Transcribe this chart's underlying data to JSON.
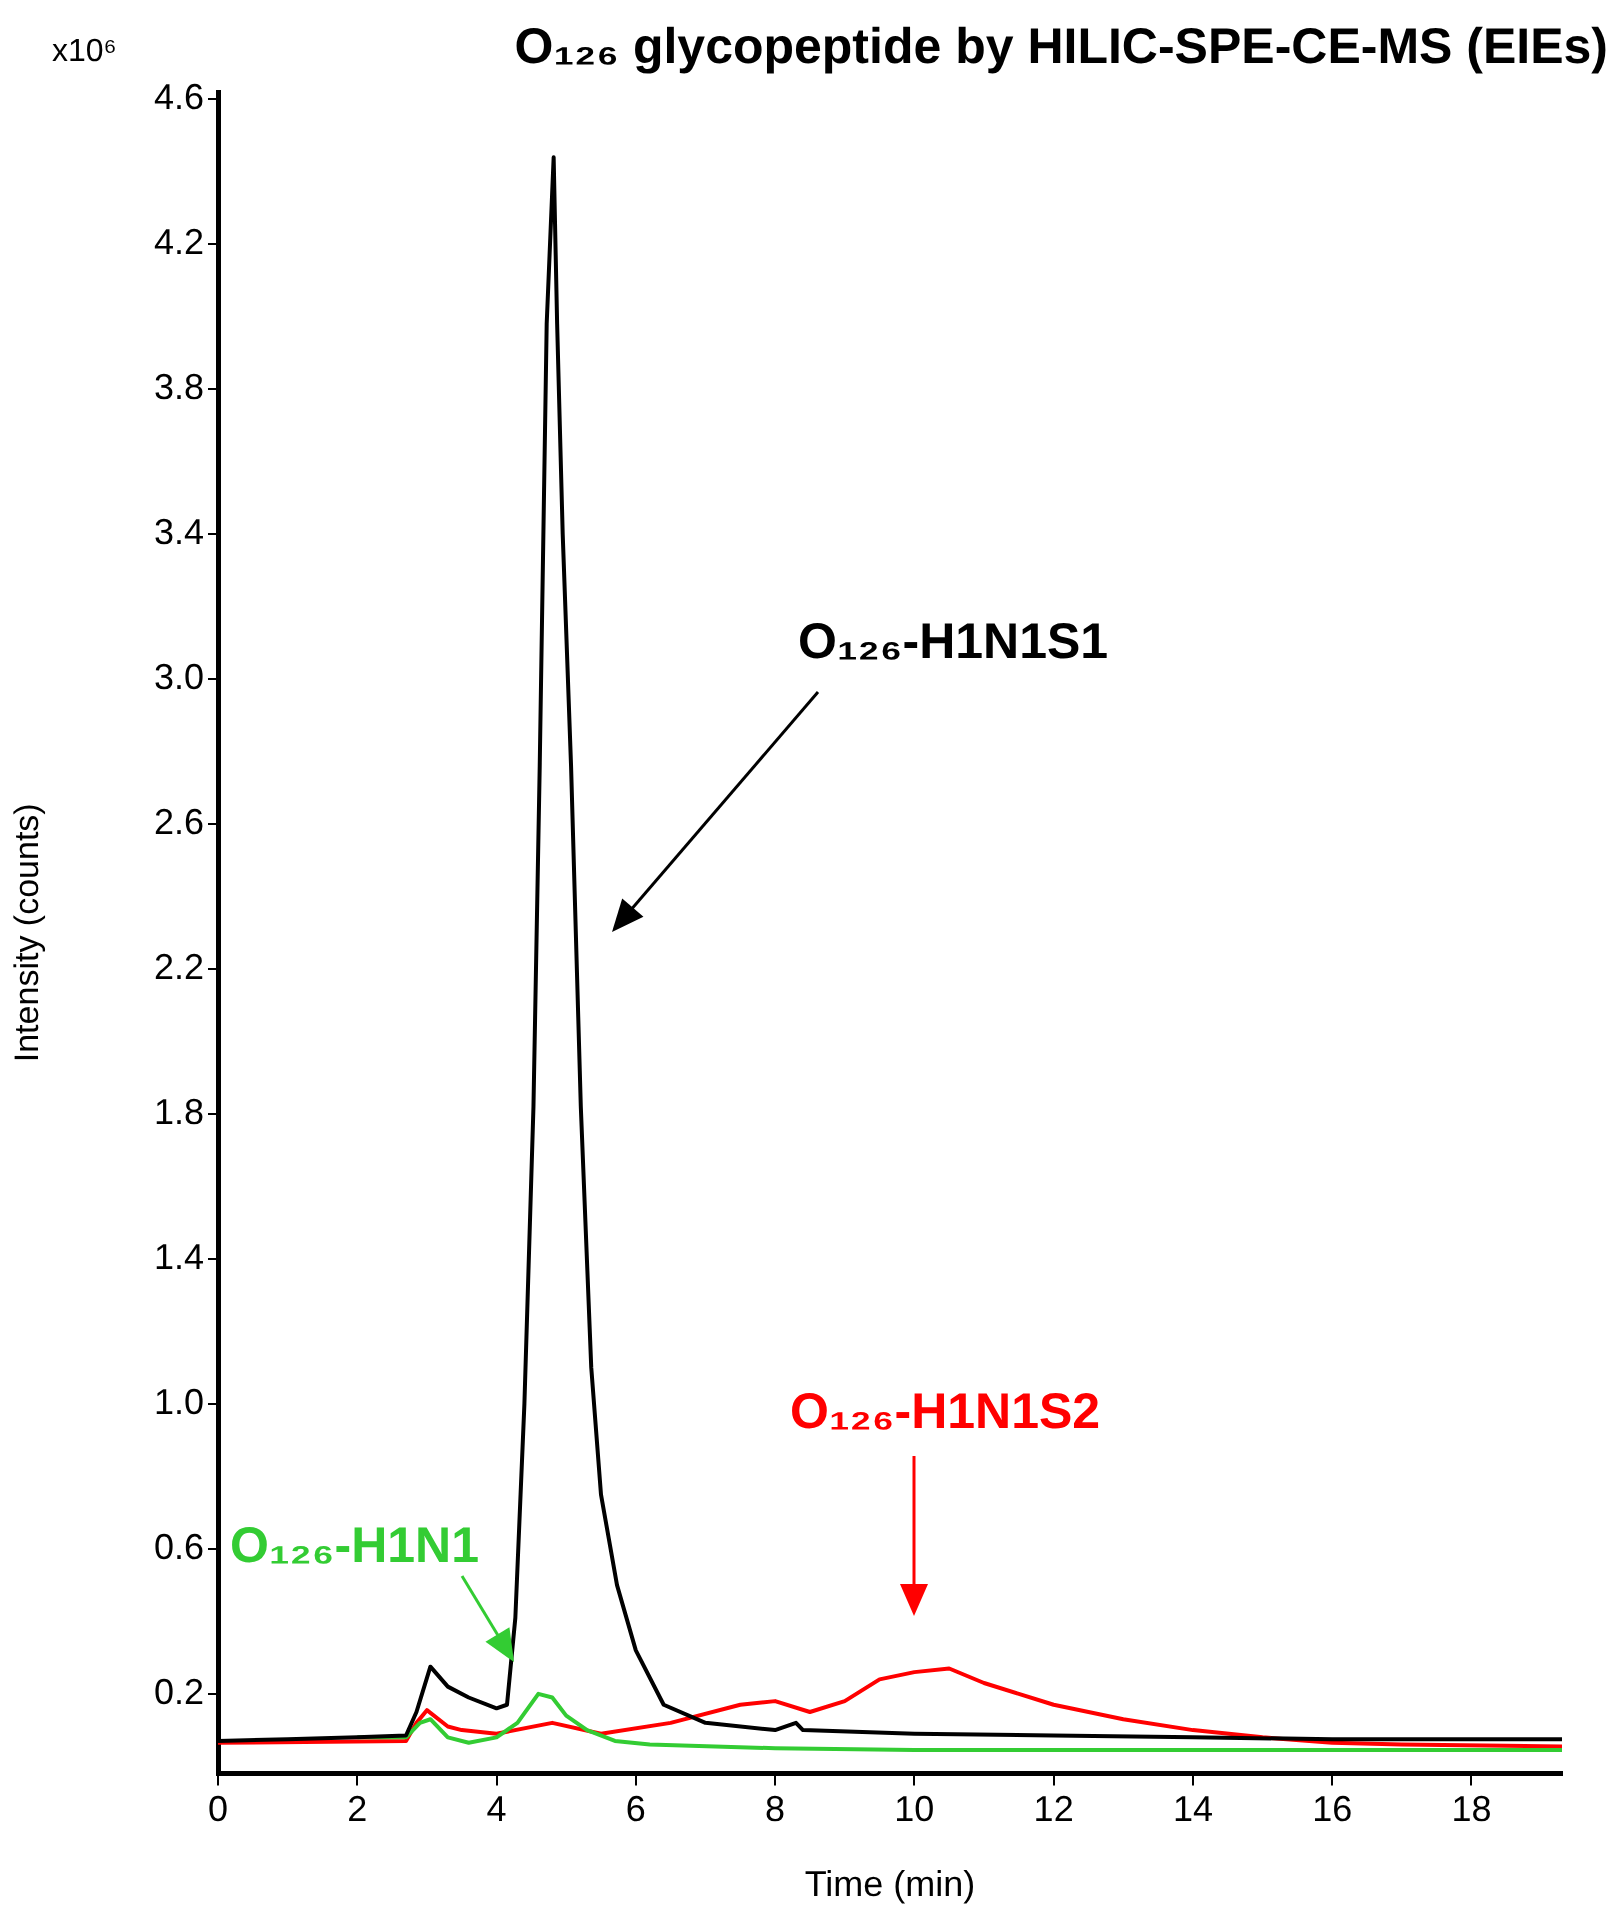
{
  "chart_data": {
    "type": "line",
    "title": "O₁₂₆ glycopeptide by HILIC-SPE-CE-MS (EIEs)",
    "xlabel": "Time (min)",
    "ylabel": "Intensity (counts)",
    "annotations": [
      "x10⁶"
    ],
    "xlim": [
      0,
      19.3
    ],
    "xticks": [
      0,
      2,
      4,
      6,
      8,
      10,
      12,
      14,
      16,
      18
    ],
    "ylim": [
      -0.02,
      4.62
    ],
    "yticks": [
      0.2,
      0.6,
      {
        "value": 1,
        "label": "1.0"
      },
      1.4,
      1.8,
      2.2,
      2.6,
      {
        "value": 3,
        "label": "3.0"
      },
      3.4,
      3.8,
      4.2,
      4.6
    ],
    "grid": false,
    "legend": false,
    "marker": "none",
    "line_style": "solid",
    "series": [
      {
        "name": "O₁₂₆-H1N1S1",
        "color": "#000000",
        "x": [
          0,
          1,
          2,
          2.7,
          2.85,
          3.05,
          3.3,
          3.6,
          4.0,
          4.15,
          4.27,
          4.4,
          4.53,
          4.62,
          4.72,
          4.82,
          4.87,
          4.95,
          5.07,
          5.21,
          5.36,
          5.5,
          5.73,
          6.0,
          6.4,
          7.0,
          8.0,
          8.3,
          8.4,
          10,
          12,
          14,
          16,
          19.3
        ],
        "values": [
          0.07,
          0.075,
          0.08,
          0.085,
          0.15,
          0.275,
          0.22,
          0.19,
          0.16,
          0.17,
          0.41,
          1.0,
          1.82,
          2.76,
          3.98,
          4.44,
          3.98,
          3.4,
          2.76,
          1.82,
          1.1,
          0.75,
          0.5,
          0.32,
          0.17,
          0.12,
          0.1,
          0.12,
          0.1,
          0.09,
          0.085,
          0.08,
          0.075,
          0.075
        ]
      },
      {
        "name": "O₁₂₆-H1N1",
        "color": "#33cc33",
        "x": [
          2,
          2.7,
          2.9,
          3.05,
          3.3,
          3.6,
          4.0,
          4.3,
          4.6,
          4.8,
          5.0,
          5.3,
          5.7,
          6.2,
          8,
          10,
          14,
          19.3
        ],
        "values": [
          0.08,
          0.08,
          0.12,
          0.13,
          0.08,
          0.065,
          0.08,
          0.12,
          0.2,
          0.19,
          0.14,
          0.1,
          0.07,
          0.06,
          0.05,
          0.045,
          0.045,
          0.045
        ]
      },
      {
        "name": "O₁₂₆-H1N1S2",
        "color": "#ff0000",
        "x": [
          0,
          2.7,
          2.85,
          3.0,
          3.3,
          3.5,
          4.0,
          4.8,
          5.5,
          6.5,
          7.5,
          8.0,
          8.5,
          9.0,
          9.5,
          10.0,
          10.5,
          11.0,
          11.5,
          12.0,
          13.0,
          14.0,
          15.0,
          16.0,
          17.0,
          19.3
        ],
        "values": [
          0.065,
          0.07,
          0.12,
          0.155,
          0.11,
          0.1,
          0.09,
          0.12,
          0.09,
          0.12,
          0.17,
          0.18,
          0.15,
          0.18,
          0.24,
          0.26,
          0.27,
          0.23,
          0.2,
          0.17,
          0.13,
          0.1,
          0.08,
          0.065,
          0.06,
          0.055
        ]
      }
    ]
  }
}
